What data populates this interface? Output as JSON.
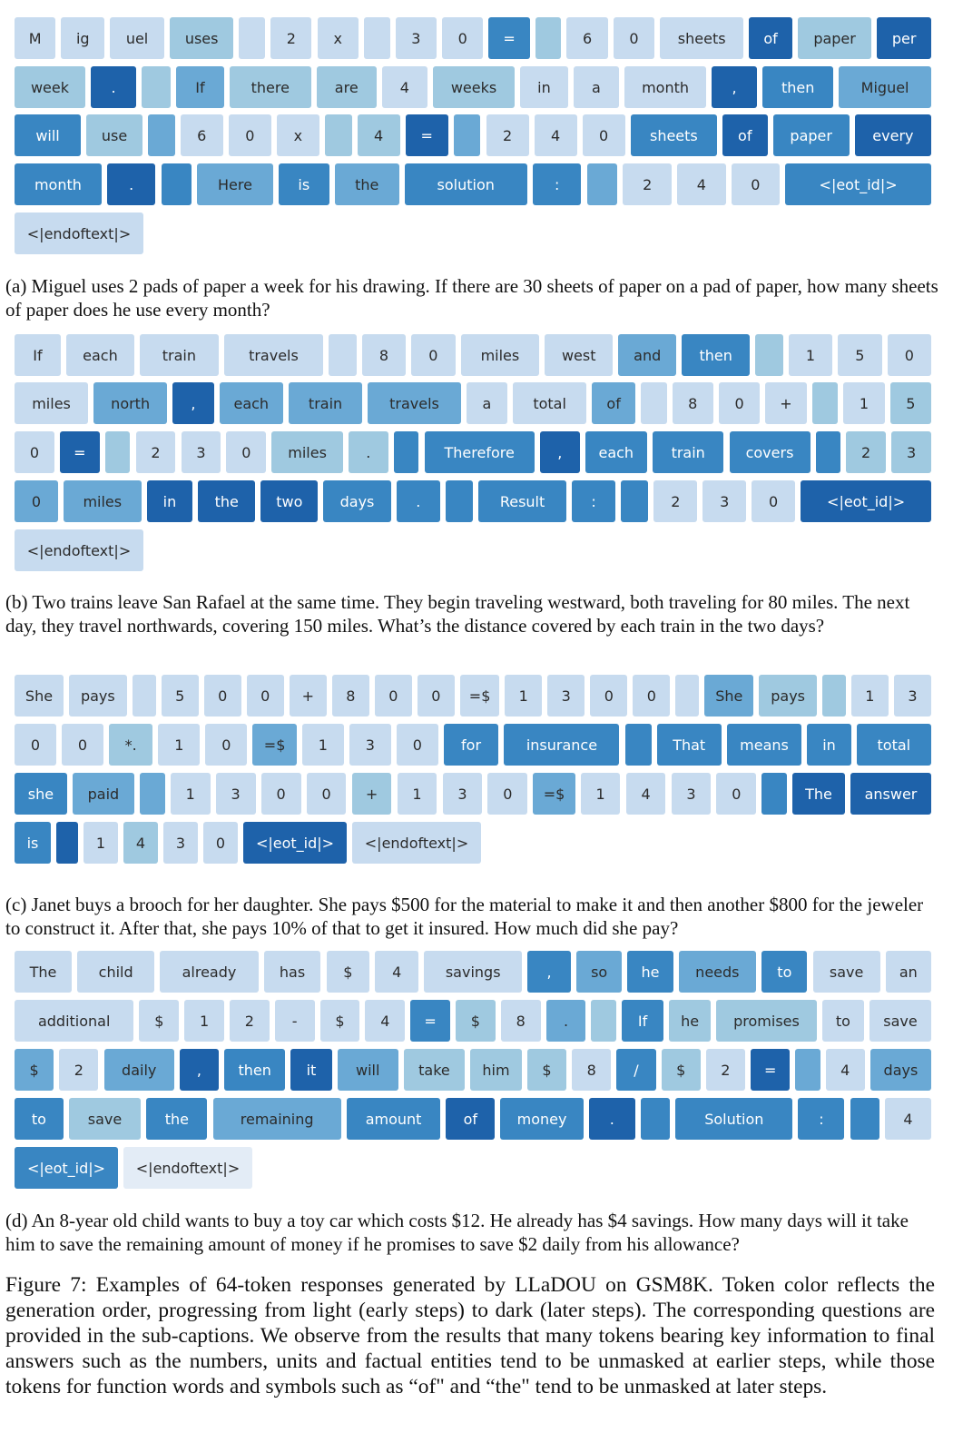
{
  "palette": [
    "#e3ecf6",
    "#c7dbef",
    "#9fc9e0",
    "#6aa9d5",
    "#3986c2",
    "#1e62aa"
  ],
  "panels": [
    {
      "id": "a",
      "rows": [
        [
          [
            "M",
            1
          ],
          [
            "ig",
            1
          ],
          [
            "uel",
            1
          ],
          [
            "uses",
            2
          ],
          [
            "",
            1
          ],
          [
            "2",
            1
          ],
          [
            "x",
            1
          ],
          [
            "",
            1
          ],
          [
            "3",
            1
          ],
          [
            "0",
            1
          ],
          [
            "=",
            4
          ],
          [
            "",
            2
          ],
          [
            "6",
            1
          ],
          [
            "0",
            1
          ],
          [
            "sheets",
            1
          ],
          [
            "of",
            5
          ],
          [
            "paper",
            2
          ],
          [
            "per",
            5
          ]
        ],
        [
          [
            "week",
            2
          ],
          [
            ".",
            5
          ],
          [
            "",
            2
          ],
          [
            "If",
            3
          ],
          [
            "there",
            2
          ],
          [
            "are",
            2
          ],
          [
            "4",
            1
          ],
          [
            "weeks",
            2
          ],
          [
            "in",
            1
          ],
          [
            "a",
            1
          ],
          [
            "month",
            1
          ],
          [
            ",",
            5
          ],
          [
            "then",
            4
          ],
          [
            "Miguel",
            3
          ]
        ],
        [
          [
            "will",
            4
          ],
          [
            "use",
            2
          ],
          [
            "",
            3
          ],
          [
            "6",
            1
          ],
          [
            "0",
            1
          ],
          [
            "x",
            1
          ],
          [
            "",
            2
          ],
          [
            "4",
            2
          ],
          [
            "=",
            5
          ],
          [
            "",
            3
          ],
          [
            "2",
            1
          ],
          [
            "4",
            1
          ],
          [
            "0",
            1
          ],
          [
            "sheets",
            4
          ],
          [
            "of",
            5
          ],
          [
            "paper",
            4
          ],
          [
            "every",
            5
          ]
        ],
        [
          [
            "month",
            4
          ],
          [
            ".",
            5
          ],
          [
            "",
            4
          ],
          [
            "Here",
            3
          ],
          [
            "is",
            4
          ],
          [
            "the",
            3
          ],
          [
            "solution",
            4
          ],
          [
            ":",
            4
          ],
          [
            "",
            3
          ],
          [
            "2",
            1
          ],
          [
            "4",
            1
          ],
          [
            "0",
            1
          ],
          [
            "<|eot_id|>",
            4
          ]
        ],
        [
          [
            "<|endoftext|>",
            1
          ]
        ]
      ],
      "caption": "(a) Miguel uses 2 pads of paper a week for his drawing. If there are 30 sheets of paper on a pad of paper, how many sheets of paper does he use every month?"
    },
    {
      "id": "b",
      "rows": [
        [
          [
            "If",
            1
          ],
          [
            "each",
            1
          ],
          [
            "train",
            1
          ],
          [
            "travels",
            1
          ],
          [
            "",
            1
          ],
          [
            "8",
            1
          ],
          [
            "0",
            1
          ],
          [
            "miles",
            1
          ],
          [
            "west",
            1
          ],
          [
            "and",
            3
          ],
          [
            "then",
            4
          ],
          [
            "",
            2
          ],
          [
            "1",
            1
          ],
          [
            "5",
            1
          ],
          [
            "0",
            1
          ]
        ],
        [
          [
            "miles",
            1
          ],
          [
            "north",
            3
          ],
          [
            ",",
            5
          ],
          [
            "each",
            3
          ],
          [
            "train",
            3
          ],
          [
            "travels",
            3
          ],
          [
            "a",
            1
          ],
          [
            "total",
            1
          ],
          [
            "of",
            3
          ],
          [
            "",
            1
          ],
          [
            "8",
            1
          ],
          [
            "0",
            1
          ],
          [
            "+",
            1
          ],
          [
            "",
            2
          ],
          [
            "1",
            1
          ],
          [
            "5",
            2
          ]
        ],
        [
          [
            "0",
            1
          ],
          [
            "=",
            5
          ],
          [
            "",
            2
          ],
          [
            "2",
            1
          ],
          [
            "3",
            1
          ],
          [
            "0",
            1
          ],
          [
            "miles",
            2
          ],
          [
            ".",
            2
          ],
          [
            "",
            4
          ],
          [
            "Therefore",
            4
          ],
          [
            ",",
            5
          ],
          [
            "each",
            4
          ],
          [
            "train",
            4
          ],
          [
            "covers",
            4
          ],
          [
            "",
            4
          ],
          [
            "2",
            2
          ],
          [
            "3",
            2
          ]
        ],
        [
          [
            "0",
            3
          ],
          [
            "miles",
            3
          ],
          [
            "in",
            5
          ],
          [
            "the",
            5
          ],
          [
            "two",
            5
          ],
          [
            "days",
            4
          ],
          [
            ".",
            4
          ],
          [
            "",
            4
          ],
          [
            "Result",
            4
          ],
          [
            ":",
            4
          ],
          [
            "",
            4
          ],
          [
            "2",
            1
          ],
          [
            "3",
            1
          ],
          [
            "0",
            1
          ],
          [
            "<|eot_id|>",
            5
          ]
        ],
        [
          [
            "<|endoftext|>",
            1
          ]
        ]
      ],
      "caption": "(b) Two trains leave San Rafael at the same time. They begin traveling westward, both traveling for 80 miles. The next day, they travel northwards, covering 150 miles. What’s the distance covered by each train in the two days?"
    },
    {
      "id": "c",
      "rows": [
        [
          [
            "She",
            1
          ],
          [
            "pays",
            1
          ],
          [
            "",
            1
          ],
          [
            "5",
            1
          ],
          [
            "0",
            1
          ],
          [
            "0",
            1
          ],
          [
            "+",
            1
          ],
          [
            "8",
            1
          ],
          [
            "0",
            1
          ],
          [
            "0",
            1
          ],
          [
            "=$",
            1
          ],
          [
            "1",
            1
          ],
          [
            "3",
            1
          ],
          [
            "0",
            1
          ],
          [
            "0",
            1
          ],
          [
            "",
            1
          ],
          [
            "She",
            3
          ],
          [
            "pays",
            2
          ],
          [
            "",
            2
          ],
          [
            "1",
            1
          ],
          [
            "3",
            1
          ]
        ],
        [
          [
            "0",
            1
          ],
          [
            "0",
            1
          ],
          [
            "*.",
            2
          ],
          [
            "1",
            1
          ],
          [
            "0",
            1
          ],
          [
            "=$",
            3
          ],
          [
            "1",
            1
          ],
          [
            "3",
            1
          ],
          [
            "0",
            1
          ],
          [
            "for",
            4
          ],
          [
            "insurance",
            4
          ],
          [
            "",
            4
          ],
          [
            "That",
            4
          ],
          [
            "means",
            4
          ],
          [
            "in",
            4
          ],
          [
            "total",
            4
          ]
        ],
        [
          [
            "she",
            4
          ],
          [
            "paid",
            3
          ],
          [
            "",
            3
          ],
          [
            "1",
            1
          ],
          [
            "3",
            1
          ],
          [
            "0",
            1
          ],
          [
            "0",
            1
          ],
          [
            "+",
            2
          ],
          [
            "1",
            1
          ],
          [
            "3",
            1
          ],
          [
            "0",
            1
          ],
          [
            "=$",
            3
          ],
          [
            "1",
            1
          ],
          [
            "4",
            1
          ],
          [
            "3",
            1
          ],
          [
            "0",
            1
          ],
          [
            "",
            4
          ],
          [
            "The",
            5
          ],
          [
            "answer",
            5
          ]
        ],
        [
          [
            "is",
            4
          ],
          [
            "",
            5
          ],
          [
            "1",
            1
          ],
          [
            "4",
            2
          ],
          [
            "3",
            1
          ],
          [
            "0",
            1
          ],
          [
            "<|eot_id|>",
            5
          ],
          [
            "<|endoftext|>",
            1
          ]
        ]
      ],
      "caption": "(c) Janet buys a brooch for her daughter. She pays $500 for the material to make it and then another $800 for the jeweler to construct it. After that, she pays 10% of that to get it insured. How much did she pay?"
    },
    {
      "id": "d",
      "rows": [
        [
          [
            "The",
            1
          ],
          [
            "child",
            1
          ],
          [
            "already",
            1
          ],
          [
            "has",
            1
          ],
          [
            "$",
            1
          ],
          [
            "4",
            1
          ],
          [
            "savings",
            1
          ],
          [
            ",",
            4
          ],
          [
            "so",
            3
          ],
          [
            "he",
            4
          ],
          [
            "needs",
            3
          ],
          [
            "to",
            4
          ],
          [
            "save",
            1
          ],
          [
            "an",
            1
          ]
        ],
        [
          [
            "additional",
            1
          ],
          [
            "$",
            1
          ],
          [
            "1",
            1
          ],
          [
            "2",
            1
          ],
          [
            "-",
            1
          ],
          [
            "$",
            1
          ],
          [
            "4",
            1
          ],
          [
            "=",
            4
          ],
          [
            "$",
            2
          ],
          [
            "8",
            1
          ],
          [
            ".",
            3
          ],
          [
            "",
            2
          ],
          [
            "If",
            4
          ],
          [
            "he",
            2
          ],
          [
            "promises",
            2
          ],
          [
            "to",
            1
          ],
          [
            "save",
            1
          ]
        ],
        [
          [
            "$",
            3
          ],
          [
            "2",
            1
          ],
          [
            "daily",
            3
          ],
          [
            ",",
            5
          ],
          [
            "then",
            4
          ],
          [
            "it",
            5
          ],
          [
            "will",
            3
          ],
          [
            "take",
            2
          ],
          [
            "him",
            2
          ],
          [
            "$",
            2
          ],
          [
            "8",
            1
          ],
          [
            "/",
            4
          ],
          [
            "$",
            2
          ],
          [
            "2",
            1
          ],
          [
            "=",
            5
          ],
          [
            "",
            3
          ],
          [
            "4",
            1
          ],
          [
            "days",
            3
          ]
        ],
        [
          [
            "to",
            4
          ],
          [
            "save",
            2
          ],
          [
            "the",
            4
          ],
          [
            "remaining",
            3
          ],
          [
            "amount",
            4
          ],
          [
            "of",
            5
          ],
          [
            "money",
            4
          ],
          [
            ".",
            5
          ],
          [
            "",
            4
          ],
          [
            "Solution",
            4
          ],
          [
            ":",
            4
          ],
          [
            "",
            4
          ],
          [
            "4",
            1
          ]
        ],
        [
          [
            "<|eot_id|>",
            4
          ],
          [
            "<|endoftext|>",
            0
          ]
        ]
      ],
      "caption": "(d) An 8-year old child wants to buy a toy car which costs $12. He already has $4 savings. How many days will it take him to save the remaining amount of money if he promises to save $2 daily from his allowance?"
    }
  ],
  "figure_caption": "Figure 7: Examples of 64-token responses generated by LLaDOU on GSM8K. Token color reflects the generation order, progressing from light (early steps) to dark (later steps). The corresponding questions are provided in the sub-captions. We observe from the results that many tokens bearing key information to final answers such as the numbers, units and factual entities tend to be unmasked at earlier steps, while those tokens for function words and symbols such as “of\" and “the\" tend to be unmasked at later steps."
}
